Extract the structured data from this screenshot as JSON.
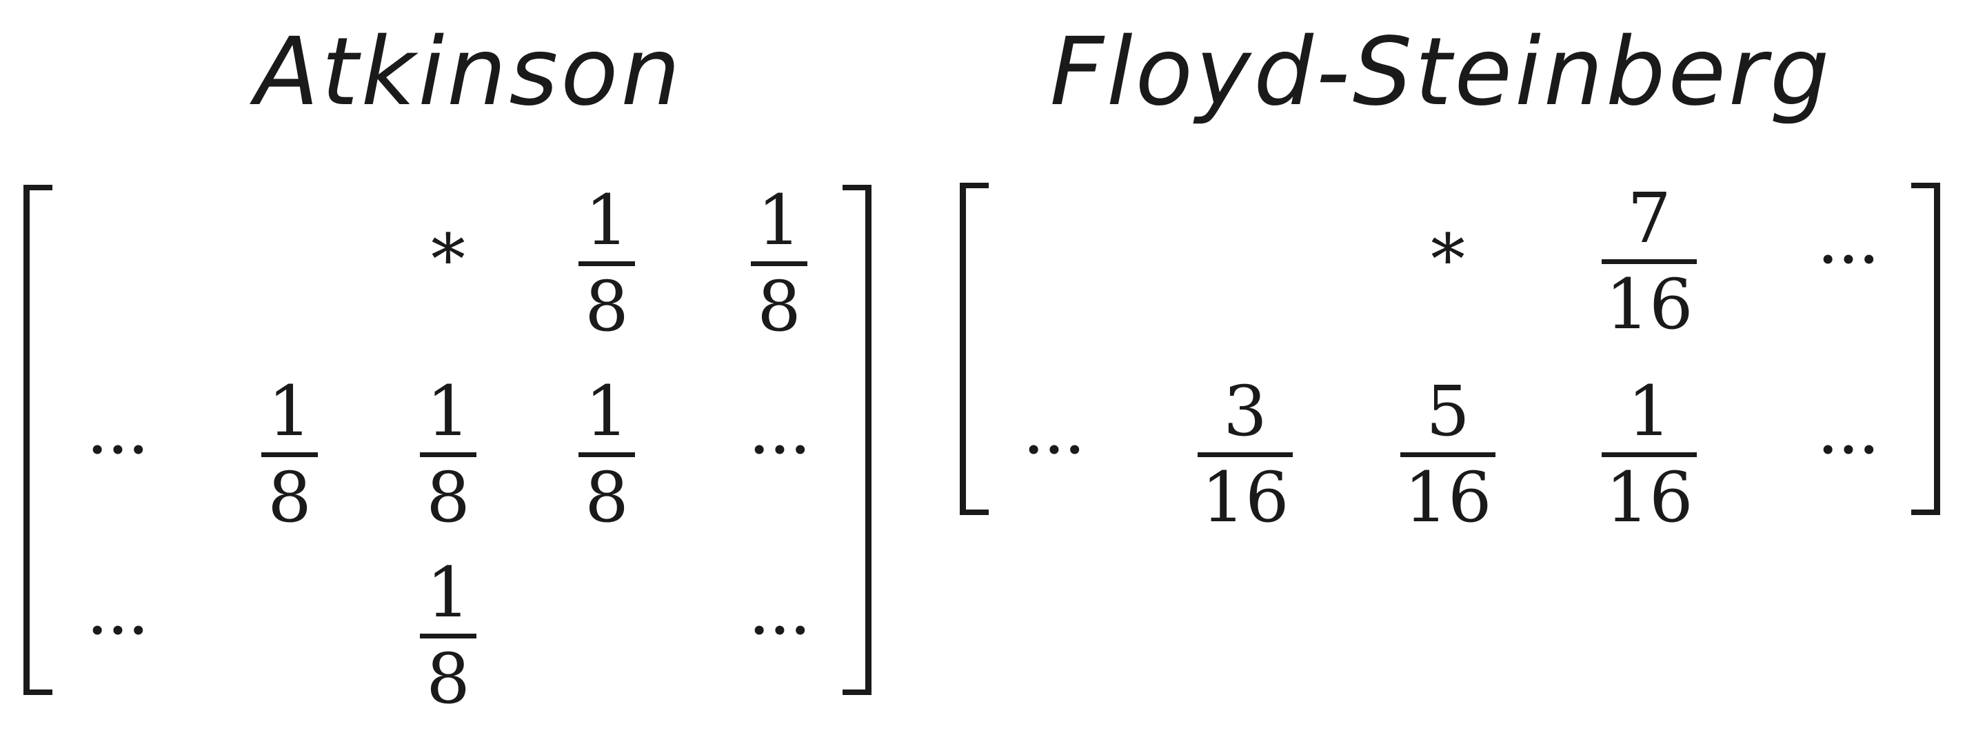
{
  "titles": {
    "atkinson": "Atkinson",
    "floyd_steinberg": "Floyd-Steinberg"
  },
  "symbols": {
    "star": "*",
    "ellipsis": "···"
  },
  "atkinson": {
    "r0": {
      "c2": "*",
      "c3": {
        "num": "1",
        "den": "8"
      },
      "c4": {
        "num": "1",
        "den": "8"
      }
    },
    "r1": {
      "c0": "···",
      "c1": {
        "num": "1",
        "den": "8"
      },
      "c2": {
        "num": "1",
        "den": "8"
      },
      "c3": {
        "num": "1",
        "den": "8"
      },
      "c4": "···"
    },
    "r2": {
      "c0": "···",
      "c2": {
        "num": "1",
        "den": "8"
      },
      "c4": "···"
    }
  },
  "floyd_steinberg": {
    "r0": {
      "c2": "*",
      "c3": {
        "num": "7",
        "den": "16"
      },
      "c4": "···"
    },
    "r1": {
      "c0": "···",
      "c1": {
        "num": "3",
        "den": "16"
      },
      "c2": {
        "num": "5",
        "den": "16"
      },
      "c3": {
        "num": "1",
        "den": "16"
      },
      "c4": "···"
    }
  }
}
